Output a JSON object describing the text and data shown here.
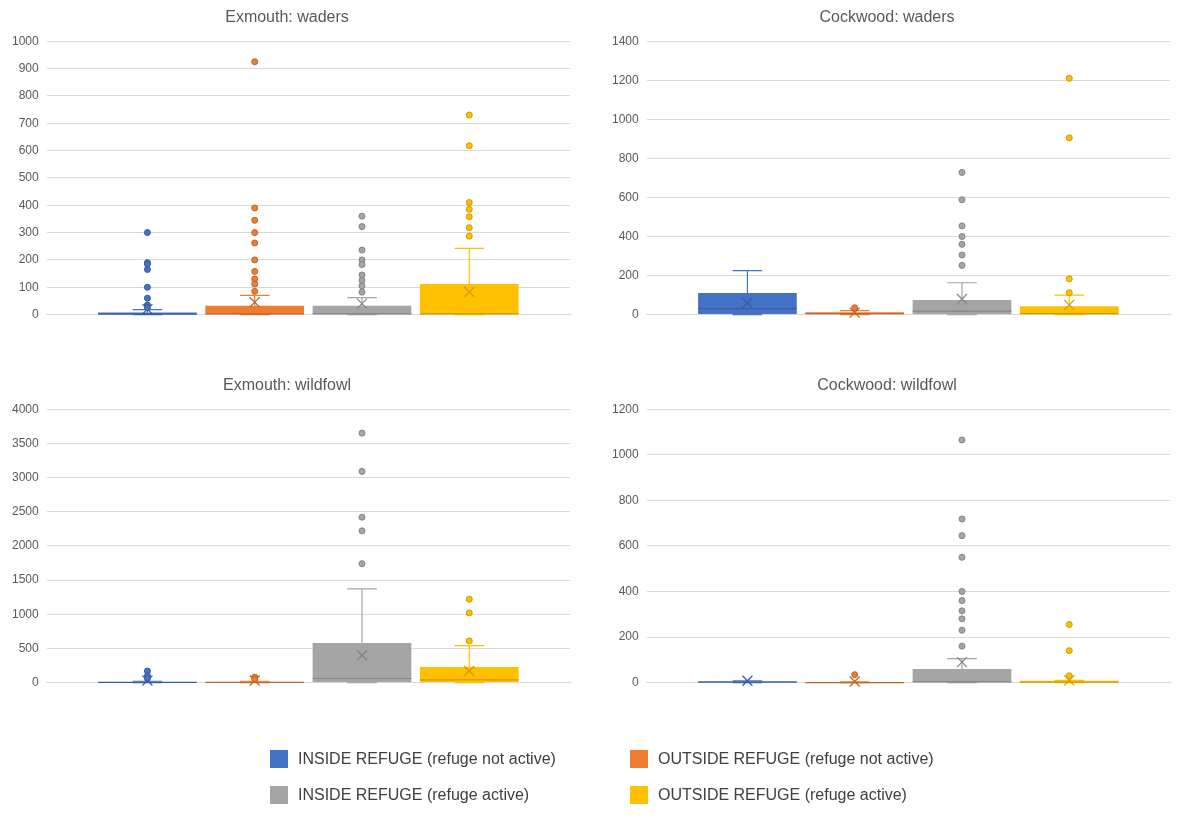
{
  "chart_data": [
    {
      "type": "box",
      "title": "Exmouth: waders",
      "categories": [
        null
      ],
      "ylim": [
        0,
        1000
      ],
      "yticks": [
        0,
        100,
        200,
        300,
        400,
        500,
        600,
        700,
        800,
        900,
        1000
      ],
      "grid": "y",
      "legend": "bottom",
      "series": [
        {
          "name": "INSIDE REFUGE (refuge not active)",
          "color": "#4472c4",
          "boxes": [
            {
              "low": 0,
              "q1": 0,
              "median": 2,
              "q3": 8,
              "high": 18,
              "mean": 20,
              "outliers": [
                300,
                190,
                185,
                165,
                100,
                60,
                35,
                25
              ]
            }
          ]
        },
        {
          "name": "OUTSIDE REFUGE (refuge not active)",
          "color": "#ed7d31",
          "boxes": [
            {
              "low": 0,
              "q1": 0,
              "median": 3,
              "q3": 32,
              "high": 70,
              "mean": 45,
              "outliers": [
                925,
                390,
                345,
                300,
                262,
                200,
                158,
                130,
                112,
                85
              ]
            }
          ]
        },
        {
          "name": "INSIDE REFUGE (refuge active)",
          "color": "#a5a5a5",
          "boxes": [
            {
              "low": 0,
              "q1": 0,
              "median": 3,
              "q3": 32,
              "high": 62,
              "mean": 40,
              "outliers": [
                360,
                322,
                236,
                200,
                183,
                145,
                125,
                105,
                82
              ]
            }
          ]
        },
        {
          "name": "OUTSIDE REFUGE (refuge active)",
          "color": "#ffc000",
          "boxes": [
            {
              "low": 0,
              "q1": 0,
              "median": 3,
              "q3": 112,
              "high": 242,
              "mean": 83,
              "outliers": [
                730,
                618,
                410,
                385,
                358,
                318,
                287
              ]
            }
          ]
        }
      ]
    },
    {
      "type": "box",
      "title": "Cockwood: waders",
      "categories": [
        null
      ],
      "ylim": [
        0,
        1400
      ],
      "yticks": [
        0,
        200,
        400,
        600,
        800,
        1000,
        1200,
        1400
      ],
      "grid": "y",
      "series": [
        {
          "color": "#4472c4",
          "boxes": [
            {
              "low": 0,
              "q1": 0,
              "median": 30,
              "q3": 110,
              "high": 225,
              "mean": 60
            }
          ]
        },
        {
          "color": "#ed7d31",
          "boxes": [
            {
              "low": 0,
              "q1": 0,
              "median": 5,
              "q3": 12,
              "high": 20,
              "mean": 10,
              "outliers": [
                35
              ]
            }
          ]
        },
        {
          "color": "#a5a5a5",
          "boxes": [
            {
              "low": 0,
              "q1": 0,
              "median": 18,
              "q3": 75,
              "high": 163,
              "mean": 80,
              "outliers": [
                728,
                588,
                454,
                400,
                360,
                305,
                252
              ]
            }
          ]
        },
        {
          "color": "#ffc000",
          "boxes": [
            {
              "low": 0,
              "q1": 0,
              "median": 5,
              "q3": 43,
              "high": 100,
              "mean": 50,
              "outliers": [
                1210,
                905,
                183,
                112
              ]
            }
          ]
        }
      ]
    },
    {
      "type": "box",
      "title": "Exmouth: wildfowl",
      "categories": [
        null
      ],
      "ylim": [
        0,
        4000
      ],
      "yticks": [
        0,
        500,
        1000,
        1500,
        2000,
        2500,
        3000,
        3500,
        4000
      ],
      "grid": "y",
      "series": [
        {
          "color": "#4472c4",
          "boxes": [
            {
              "low": 0,
              "q1": 0,
              "median": 2,
              "q3": 10,
              "high": 20,
              "mean": 30,
              "outliers": [
                170,
                100,
                60
              ]
            }
          ]
        },
        {
          "color": "#ed7d31",
          "boxes": [
            {
              "low": 0,
              "q1": 0,
              "median": 2,
              "q3": 10,
              "high": 20,
              "mean": 30,
              "outliers": [
                80,
                50
              ]
            }
          ]
        },
        {
          "color": "#a5a5a5",
          "boxes": [
            {
              "low": 0,
              "q1": 0,
              "median": 60,
              "q3": 580,
              "high": 1370,
              "mean": 400,
              "outliers": [
                3650,
                3090,
                2420,
                2220,
                1740
              ]
            }
          ]
        },
        {
          "color": "#ffc000",
          "boxes": [
            {
              "low": 0,
              "q1": 0,
              "median": 40,
              "q3": 230,
              "high": 540,
              "mean": 170,
              "outliers": [
                1220,
                1020,
                610
              ]
            }
          ]
        }
      ]
    },
    {
      "type": "box",
      "title": "Cockwood: wildfowl",
      "categories": [
        null
      ],
      "ylim": [
        0,
        1200
      ],
      "yticks": [
        0,
        200,
        400,
        600,
        800,
        1000,
        1200
      ],
      "grid": "y",
      "series": [
        {
          "color": "#4472c4",
          "boxes": [
            {
              "low": 0,
              "q1": 0,
              "median": 2,
              "q3": 5,
              "high": 8,
              "mean": 8
            }
          ]
        },
        {
          "color": "#ed7d31",
          "boxes": [
            {
              "low": 0,
              "q1": 0,
              "median": 0,
              "q3": 2,
              "high": 3,
              "mean": 5,
              "outliers": [
                35
              ]
            }
          ]
        },
        {
          "color": "#a5a5a5",
          "boxes": [
            {
              "low": 0,
              "q1": 0,
              "median": 3,
              "q3": 60,
              "high": 105,
              "mean": 90,
              "outliers": [
                1065,
                718,
                645,
                550,
                400,
                360,
                315,
                280,
                230,
                160
              ]
            }
          ]
        },
        {
          "color": "#ffc000",
          "boxes": [
            {
              "low": 0,
              "q1": 0,
              "median": 2,
              "q3": 8,
              "high": 10,
              "mean": 10,
              "outliers": [
                255,
                140,
                30
              ]
            }
          ]
        }
      ]
    }
  ]
}
